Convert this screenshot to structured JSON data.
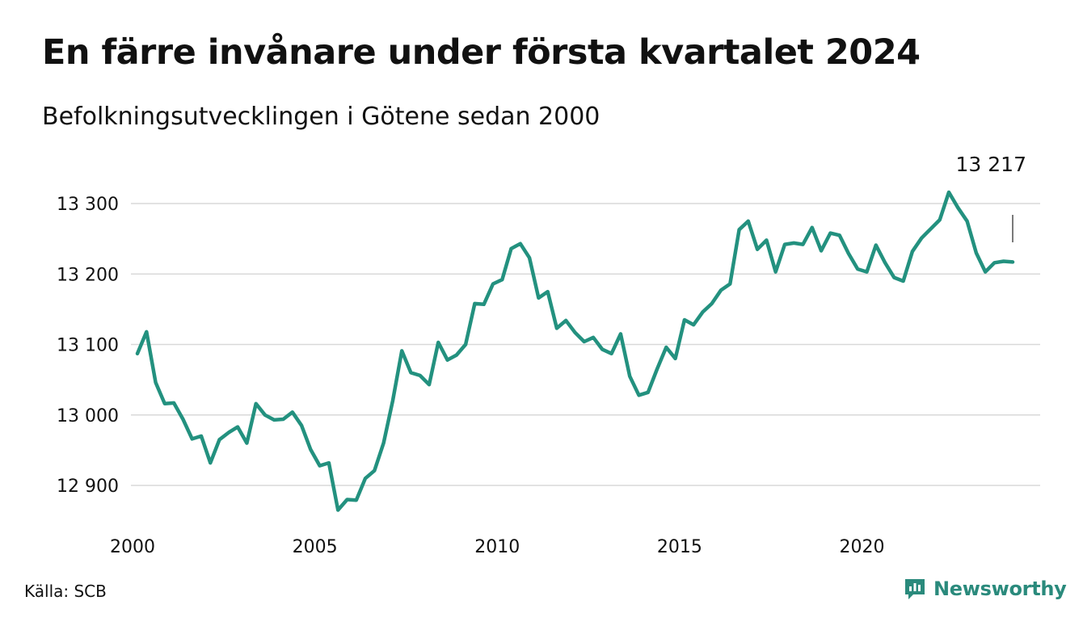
{
  "title": "En färre invånare under första kvartalet 2024",
  "subtitle": "Befolkningsutvecklingen i Götene sedan 2000",
  "source": "Källa: SCB",
  "brand": {
    "name": "Newsworthy",
    "icon": "newsworthy-logo-icon",
    "color": "#2a8a7c"
  },
  "chart_data": {
    "type": "line",
    "title": "En färre invånare under första kvartalet 2024",
    "subtitle": "Befolkningsutvecklingen i Götene sedan 2000",
    "xlabel": "",
    "ylabel": "",
    "xlim": [
      2000,
      2024.1
    ],
    "ylim": [
      12850,
      13335
    ],
    "grid": true,
    "line_color": "#23917f",
    "x_ticks": [
      {
        "value": 2000,
        "label": "2000"
      },
      {
        "value": 2005,
        "label": "2005"
      },
      {
        "value": 2010,
        "label": "2010"
      },
      {
        "value": 2015,
        "label": "2015"
      },
      {
        "value": 2020,
        "label": "2020"
      }
    ],
    "y_ticks": [
      {
        "value": 12900,
        "label": "12 900"
      },
      {
        "value": 13000,
        "label": "13 000"
      },
      {
        "value": 13100,
        "label": "13 100"
      },
      {
        "value": 13200,
        "label": "13 200"
      },
      {
        "value": 13300,
        "label": "13 300"
      }
    ],
    "end_label": "13 217",
    "series": [
      {
        "x": [
          2000.0,
          2000.25,
          2000.5,
          2000.75,
          2001.0,
          2001.25,
          2001.5,
          2001.75,
          2002.0,
          2002.25,
          2002.5,
          2002.75,
          2003.0,
          2003.25,
          2003.5,
          2003.75,
          2004.0,
          2004.25,
          2004.5,
          2004.75,
          2005.0,
          2005.25,
          2005.5,
          2005.75,
          2006.0,
          2006.25,
          2006.5,
          2006.75,
          2007.0,
          2007.25,
          2007.5,
          2007.75,
          2008.0,
          2008.25,
          2008.5,
          2008.75,
          2009.0,
          2009.25,
          2009.5,
          2009.75,
          2010.0,
          2010.25,
          2010.5,
          2010.75,
          2011.0,
          2011.25,
          2011.5,
          2011.75,
          2012.0,
          2012.25,
          2012.5,
          2012.75,
          2013.0,
          2013.25,
          2013.5,
          2013.75,
          2014.0,
          2014.25,
          2014.5,
          2014.75,
          2015.0,
          2015.25,
          2015.5,
          2015.75,
          2016.0,
          2016.25,
          2016.5,
          2016.75,
          2017.0,
          2017.25,
          2017.5,
          2017.75,
          2018.0,
          2018.25,
          2018.5,
          2018.75,
          2019.0,
          2019.25,
          2019.5,
          2019.75,
          2020.0,
          2020.25,
          2020.5,
          2020.75,
          2021.0,
          2021.25,
          2021.5,
          2021.75,
          2022.0,
          2022.25,
          2022.5,
          2022.75,
          2023.0,
          2023.25,
          2023.5,
          2023.75,
          2024.0
        ],
        "y": [
          13087,
          13118,
          13046,
          13016,
          13017,
          12994,
          12966,
          12970,
          12932,
          12965,
          12975,
          12983,
          12960,
          13016,
          13000,
          12993,
          12994,
          13004,
          12985,
          12951,
          12928,
          12932,
          12865,
          12880,
          12879,
          12910,
          12921,
          12960,
          13020,
          13091,
          13060,
          13056,
          13043,
          13103,
          13078,
          13085,
          13100,
          13158,
          13157,
          13186,
          13192,
          13236,
          13243,
          13223,
          13166,
          13175,
          13123,
          13134,
          13117,
          13104,
          13110,
          13093,
          13087,
          13115,
          13055,
          13028,
          13032,
          13065,
          13096,
          13080,
          13135,
          13128,
          13146,
          13158,
          13177,
          13186,
          13263,
          13275,
          13235,
          13248,
          13203,
          13242,
          13244,
          13242,
          13266,
          13233,
          13258,
          13255,
          13229,
          13207,
          13203,
          13241,
          13216,
          13195,
          13190,
          13232,
          13251,
          13264,
          13277,
          13316,
          13294,
          13275,
          13230,
          13203,
          13216,
          13218,
          13217
        ]
      }
    ]
  }
}
